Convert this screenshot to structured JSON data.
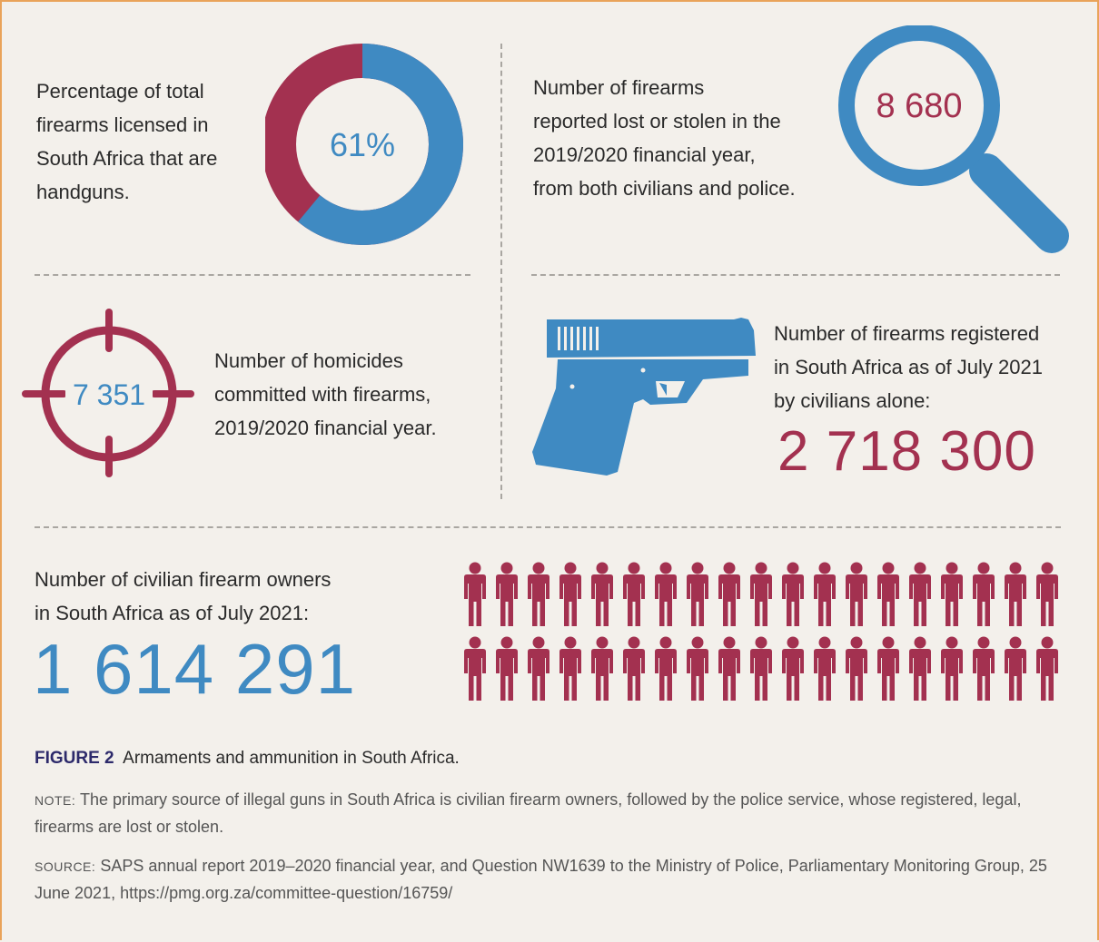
{
  "panel_handguns": {
    "text": [
      "Percentage of total",
      "firearms licensed in",
      "South Africa that are",
      "handguns."
    ],
    "value_label": "61%",
    "percent": 61,
    "colors": {
      "primary": "#3f8ac2",
      "remainder": "#a33150"
    }
  },
  "panel_lost": {
    "text": [
      "Number of firearms",
      "reported lost or stolen in the",
      "2019/2020 financial year,",
      "from both civilians and police."
    ],
    "value": "8 680",
    "icon": "magnifying-glass-icon"
  },
  "panel_homicides": {
    "text": [
      "Number of homicides",
      "committed with firearms,",
      "2019/2020 financial year."
    ],
    "value": "7 351",
    "icon": "crosshair-icon"
  },
  "panel_registered": {
    "text": [
      "Number of firearms registered",
      "in South Africa as of July 2021",
      "by civilians alone:"
    ],
    "value": "2 718 300",
    "icon": "handgun-icon"
  },
  "panel_owners": {
    "text": [
      "Number of civilian firearm owners",
      "in South Africa as of July 2021:"
    ],
    "value": "1 614 291",
    "icon": "person-icon",
    "icon_rows": 2,
    "icons_per_row": 19
  },
  "caption": {
    "label": "FIGURE 2",
    "text": "Armaments and ammunition in South Africa.",
    "note_label": "NOTE:",
    "note_text": "The primary source of illegal guns in South Africa is civilian firearm owners, followed by the police service, whose registered, legal, firearms are lost or stolen.",
    "source_label": "SOURCE:",
    "source_text": "SAPS annual report 2019–2020 financial year, and Question NW1639 to the Ministry of Police, Parliamentary Monitoring Group, 25 June 2021, https://pmg.org.za/committee-question/16759/"
  },
  "colors": {
    "blue": "#3f8ac2",
    "red": "#a33150",
    "navy": "#2d2a6b",
    "border": "#e9a35a",
    "background": "#f3f0eb"
  }
}
